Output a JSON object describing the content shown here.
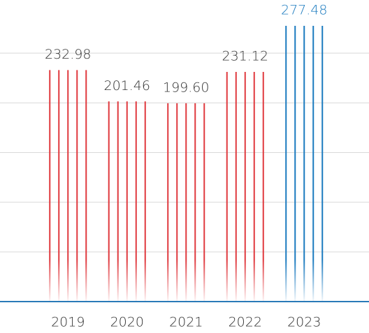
{
  "chart_data": {
    "type": "bar",
    "categories": [
      "2019",
      "2020",
      "2021",
      "2022",
      "2023"
    ],
    "values": [
      232.98,
      201.46,
      199.6,
      231.12,
      277.48
    ],
    "value_labels": [
      "232.98",
      "201.46",
      "199.60",
      "231.12",
      "277.48"
    ],
    "colors": [
      "#e0393e",
      "#e0393e",
      "#e0393e",
      "#e0393e",
      "#1a7abf"
    ],
    "ylim": [
      0,
      300
    ],
    "yticks": [
      0,
      50,
      100,
      150,
      200,
      250
    ],
    "grid": true
  }
}
